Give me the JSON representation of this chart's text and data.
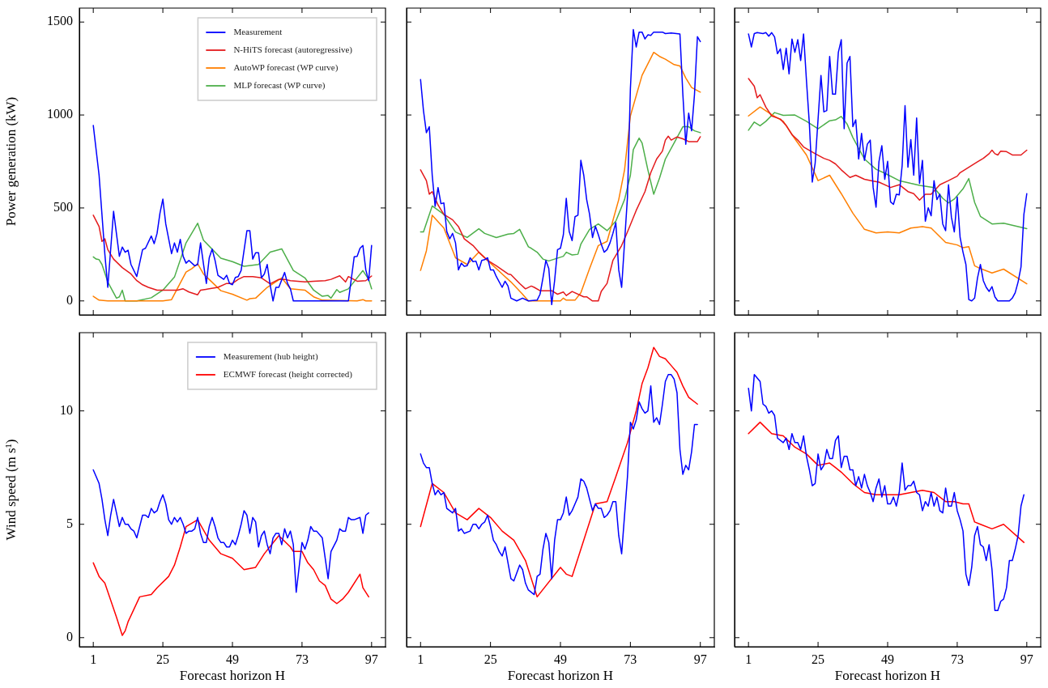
{
  "chart_data": [
    {
      "type": "line",
      "ylabel": "Power generation (kW)",
      "xlim": [
        -3.8,
        101.8
      ],
      "xticks": [
        1,
        25,
        49,
        73,
        97
      ],
      "ylim": [
        -75,
        1575
      ],
      "yticks": [
        0,
        500,
        1000,
        1500
      ],
      "tick_labels": "y",
      "legend": "top right",
      "series": [
        {
          "name": "Measurement",
          "color": "#0000ff",
          "x": [
            1,
            3,
            5,
            6,
            8,
            10,
            11,
            12,
            13,
            14,
            16,
            18,
            19,
            21,
            22,
            23,
            24,
            25,
            26,
            28,
            29,
            30,
            31,
            32,
            33,
            34,
            36,
            37,
            38,
            39,
            40,
            41,
            42,
            43,
            44,
            46,
            47,
            48,
            49,
            50,
            51,
            52,
            54,
            55,
            56,
            57,
            58,
            59,
            60,
            61,
            62,
            63,
            64,
            65,
            67,
            68,
            69,
            70,
            89,
            91,
            92,
            93,
            94,
            95,
            96,
            97
          ],
          "values": [
            944,
            676,
            250,
            73,
            482,
            240,
            290,
            262,
            273,
            196,
            131,
            276,
            283,
            349,
            308,
            363,
            472,
            548,
            414,
            254,
            312,
            262,
            331,
            240,
            203,
            218,
            189,
            196,
            312,
            200,
            94,
            232,
            279,
            218,
            138,
            116,
            138,
            94,
            87,
            126,
            131,
            164,
            378,
            378,
            225,
            259,
            259,
            124,
            145,
            196,
            87,
            0,
            73,
            73,
            153,
            94,
            65,
            0,
            0,
            237,
            240,
            283,
            298,
            167,
            109,
            298
          ]
        },
        {
          "name": "N-HiTS forecast (autoregressive)",
          "color": "#e41a1c",
          "x": [
            1,
            3,
            4,
            5,
            6,
            8,
            11,
            14,
            16,
            18,
            20,
            23,
            27,
            30,
            32,
            34,
            37,
            38,
            41,
            44,
            47,
            49,
            51,
            53,
            56,
            59,
            62,
            65,
            67,
            69,
            74,
            77,
            81,
            83,
            86,
            88,
            89,
            92,
            95,
            97
          ],
          "values": [
            461,
            400,
            320,
            334,
            276,
            225,
            179,
            145,
            109,
            87,
            73,
            58,
            58,
            58,
            65,
            48,
            33,
            58,
            65,
            73,
            94,
            94,
            116,
            131,
            131,
            124,
            92,
            116,
            116,
            109,
            102,
            106,
            109,
            116,
            135,
            102,
            131,
            106,
            109,
            134
          ]
        },
        {
          "name": "AutoWP forecast (WP curve)",
          "color": "#ff7f00",
          "x": [
            1,
            3,
            6,
            25,
            28,
            33,
            35,
            37,
            39,
            45,
            49,
            54,
            55,
            57,
            61,
            66,
            69,
            74,
            77,
            80,
            92,
            94,
            95,
            97
          ],
          "values": [
            25,
            4,
            0,
            0,
            7,
            155,
            174,
            200,
            145,
            55,
            36,
            4,
            12,
            15,
            73,
            124,
            65,
            58,
            22,
            4,
            0,
            7,
            0,
            0
          ]
        },
        {
          "name": "MLP forecast (WP curve)",
          "color": "#4daf4a",
          "x": [
            1,
            2,
            3,
            4,
            6,
            9,
            10,
            11,
            12,
            16,
            21,
            25,
            29,
            33,
            37,
            39,
            45,
            49,
            53,
            58,
            62,
            66,
            70,
            74,
            77,
            80,
            82,
            83,
            85,
            86,
            89,
            94,
            96,
            97
          ],
          "values": [
            237,
            225,
            222,
            196,
            102,
            15,
            22,
            58,
            0,
            0,
            17,
            58,
            128,
            312,
            418,
            327,
            230,
            211,
            186,
            196,
            262,
            280,
            164,
            124,
            58,
            25,
            29,
            15,
            61,
            46,
            65,
            163,
            116,
            65
          ]
        }
      ]
    },
    {
      "type": "line",
      "xlim": [
        -3.8,
        101.8
      ],
      "xticks": [
        1,
        25,
        49,
        73,
        97
      ],
      "ylim": [
        -75,
        1575
      ],
      "yticks": [
        0,
        500,
        1000,
        1500
      ],
      "tick_labels": false,
      "series": [
        {
          "color": "#0000ff",
          "x": [
            1,
            2,
            3,
            4,
            5,
            6,
            7,
            8,
            9,
            10,
            11,
            12,
            13,
            14,
            15,
            16,
            17,
            18,
            19,
            20,
            21,
            22,
            23,
            24,
            25,
            26,
            27,
            29,
            30,
            31,
            32,
            34,
            36,
            38,
            41,
            42,
            43,
            44,
            45,
            46,
            47,
            48,
            49,
            50,
            51,
            52,
            53,
            54,
            55,
            56,
            57,
            58,
            59,
            60,
            61,
            62,
            63,
            64,
            65,
            66,
            67,
            68,
            69,
            70,
            72,
            73,
            74,
            75,
            76,
            77,
            78,
            79,
            80,
            81,
            84,
            85,
            87,
            90,
            91,
            92,
            93,
            94,
            95,
            96,
            97
          ],
          "values": [
            1191,
            1024,
            905,
            937,
            676,
            509,
            610,
            523,
            527,
            373,
            334,
            363,
            312,
            167,
            203,
            186,
            189,
            232,
            211,
            214,
            167,
            218,
            222,
            232,
            167,
            167,
            131,
            73,
            106,
            80,
            15,
            0,
            15,
            0,
            4,
            36,
            124,
            218,
            174,
            -20,
            109,
            276,
            283,
            356,
            552,
            373,
            324,
            453,
            461,
            756,
            676,
            545,
            465,
            341,
            402,
            356,
            305,
            262,
            276,
            312,
            363,
            421,
            167,
            73,
            559,
            1141,
            1460,
            1366,
            1446,
            1446,
            1409,
            1431,
            1428,
            1446,
            1446,
            1438,
            1441,
            1436,
            1112,
            843,
            1010,
            915,
            1112,
            1421,
            1395
          ]
        },
        {
          "color": "#e41a1c",
          "x": [
            1,
            3,
            4,
            5,
            7,
            9,
            12,
            14,
            16,
            19,
            21,
            24,
            27,
            29,
            31,
            32,
            35,
            37,
            39,
            40,
            42,
            46,
            48,
            50,
            51,
            53,
            57,
            58,
            60,
            62,
            63,
            65,
            67,
            70,
            72,
            75,
            78,
            80,
            82,
            84,
            85,
            86,
            87,
            89,
            91,
            93,
            95,
            96,
            97
          ],
          "values": [
            705,
            647,
            574,
            588,
            516,
            465,
            436,
            400,
            334,
            298,
            262,
            218,
            189,
            167,
            145,
            142,
            94,
            65,
            80,
            73,
            55,
            55,
            36,
            48,
            29,
            51,
            22,
            22,
            0,
            0,
            51,
            94,
            218,
            298,
            371,
            487,
            588,
            690,
            763,
            806,
            865,
            886,
            865,
            882,
            872,
            857,
            857,
            857,
            883
          ]
        },
        {
          "color": "#ff7f00",
          "x": [
            1,
            3,
            5,
            9,
            13,
            17,
            21,
            25,
            29,
            32,
            36,
            38,
            49,
            50,
            51,
            54,
            56,
            59,
            62,
            65,
            69,
            71,
            73,
            77,
            81,
            83,
            85,
            88,
            90,
            92,
            94,
            97
          ],
          "values": [
            164,
            269,
            461,
            392,
            232,
            196,
            262,
            203,
            145,
            102,
            36,
            0,
            0,
            15,
            4,
            4,
            44,
            174,
            298,
            320,
            545,
            705,
            995,
            1213,
            1337,
            1315,
            1300,
            1271,
            1264,
            1199,
            1148,
            1123
          ]
        },
        {
          "color": "#4daf4a",
          "x": [
            1,
            2,
            5,
            9,
            13,
            17,
            21,
            23,
            27,
            31,
            33,
            35,
            38,
            39,
            41,
            43,
            45,
            50,
            51,
            53,
            55,
            56,
            59,
            62,
            65,
            68,
            71,
            73,
            74,
            76,
            77,
            79,
            81,
            83,
            85,
            88,
            91,
            93,
            95,
            97
          ],
          "values": [
            371,
            371,
            511,
            465,
            371,
            341,
            388,
            363,
            341,
            359,
            363,
            385,
            291,
            283,
            262,
            225,
            215,
            240,
            262,
            247,
            251,
            305,
            385,
            414,
            378,
            429,
            545,
            676,
            814,
            876,
            850,
            705,
            574,
            661,
            763,
            850,
            937,
            937,
            915,
            905
          ]
        }
      ]
    },
    {
      "type": "line",
      "xlim": [
        -3.8,
        101.8
      ],
      "xticks": [
        1,
        25,
        49,
        73,
        97
      ],
      "ylim": [
        -75,
        1575
      ],
      "yticks": [
        0,
        500,
        1000,
        1500
      ],
      "tick_labels": false,
      "series": [
        {
          "color": "#0000ff",
          "x": [
            1,
            2,
            3,
            4,
            6,
            7,
            8,
            9,
            10,
            11,
            12,
            13,
            14,
            15,
            16,
            17,
            18,
            19,
            20,
            21,
            22,
            23,
            24,
            26,
            27,
            28,
            29,
            30,
            31,
            32,
            33,
            34,
            35,
            36,
            37,
            38,
            39,
            40,
            41,
            42,
            43,
            44,
            45,
            46,
            47,
            48,
            49,
            50,
            51,
            52,
            53,
            54,
            55,
            56,
            57,
            58,
            59,
            60,
            61,
            62,
            63,
            64,
            65,
            66,
            67,
            68,
            69,
            70,
            71,
            72,
            73,
            74,
            75,
            76,
            77,
            78,
            79,
            80,
            81,
            82,
            83,
            84,
            85,
            86,
            87,
            91,
            92,
            93,
            94,
            95,
            96,
            97
          ],
          "values": [
            1436,
            1366,
            1438,
            1443,
            1438,
            1443,
            1424,
            1443,
            1420,
            1330,
            1356,
            1245,
            1359,
            1221,
            1409,
            1337,
            1405,
            1293,
            1436,
            1184,
            952,
            639,
            741,
            1213,
            1017,
            1024,
            1315,
            1112,
            1112,
            1337,
            1405,
            926,
            1279,
            1315,
            937,
            974,
            763,
            901,
            756,
            843,
            865,
            610,
            504,
            748,
            835,
            654,
            751,
            533,
            519,
            574,
            570,
            727,
            1050,
            719,
            868,
            676,
            984,
            632,
            756,
            429,
            501,
            458,
            647,
            545,
            574,
            414,
            378,
            625,
            450,
            371,
            559,
            341,
            262,
            196,
            7,
            0,
            15,
            124,
            196,
            109,
            73,
            51,
            77,
            22,
            0,
            0,
            15,
            44,
            102,
            182,
            465,
            577
          ]
        },
        {
          "color": "#e41a1c",
          "x": [
            1,
            3,
            4,
            5,
            7,
            9,
            12,
            14,
            16,
            18,
            20,
            24,
            27,
            29,
            31,
            33,
            36,
            38,
            41,
            44,
            46,
            49,
            50,
            53,
            56,
            58,
            60,
            62,
            64,
            67,
            70,
            73,
            74,
            77,
            80,
            82,
            84,
            85,
            86,
            87,
            88,
            90,
            92,
            94,
            95,
            97
          ],
          "values": [
            1196,
            1155,
            1093,
            1109,
            1042,
            995,
            978,
            944,
            894,
            865,
            828,
            792,
            767,
            756,
            737,
            705,
            664,
            676,
            654,
            644,
            639,
            618,
            610,
            625,
            588,
            577,
            542,
            574,
            574,
            625,
            647,
            671,
            690,
            719,
            748,
            767,
            792,
            811,
            792,
            785,
            806,
            803,
            785,
            785,
            785,
            811
          ]
        },
        {
          "color": "#ff7f00",
          "x": [
            1,
            5,
            9,
            13,
            17,
            21,
            25,
            29,
            33,
            37,
            41,
            45,
            49,
            53,
            57,
            61,
            64,
            69,
            73,
            75,
            77,
            79,
            81,
            85,
            89,
            97
          ],
          "values": [
            995,
            1043,
            1002,
            966,
            872,
            785,
            647,
            676,
            577,
            472,
            385,
            366,
            371,
            366,
            392,
            400,
            392,
            315,
            301,
            286,
            292,
            189,
            174,
            150,
            171,
            92
          ]
        },
        {
          "color": "#4daf4a",
          "x": [
            1,
            3,
            5,
            7,
            10,
            13,
            17,
            21,
            25,
            29,
            31,
            33,
            35,
            37,
            41,
            45,
            48,
            53,
            57,
            60,
            65,
            68,
            70,
            72,
            75,
            77,
            79,
            81,
            85,
            89,
            97
          ],
          "values": [
            918,
            962,
            942,
            966,
            1013,
            998,
            1000,
            966,
            926,
            969,
            974,
            992,
            952,
            879,
            763,
            708,
            687,
            647,
            632,
            622,
            610,
            552,
            527,
            548,
            603,
            658,
            530,
            455,
            414,
            418,
            389
          ]
        }
      ]
    },
    {
      "type": "line",
      "xlabel": "Forecast horizon H",
      "ylabel": "Wind speed (m s¹)",
      "xlim": [
        -3.8,
        101.8
      ],
      "xticks": [
        1,
        25,
        49,
        73,
        97
      ],
      "ylim": [
        -0.4,
        13.45
      ],
      "yticks": [
        0,
        5,
        10
      ],
      "legend": "top right",
      "series": [
        {
          "name": "Measurement (hub height)",
          "color": "#0000ff",
          "x": [
            1,
            3,
            4,
            5,
            6,
            7,
            8,
            9,
            10,
            11,
            12,
            13,
            14,
            15,
            16,
            17,
            18,
            19,
            20,
            21,
            22,
            23,
            24,
            25,
            26,
            27,
            28,
            29,
            30,
            31,
            32,
            33,
            34,
            35,
            36,
            37,
            38,
            39,
            40,
            41,
            42,
            43,
            44,
            45,
            46,
            47,
            48,
            49,
            50,
            51,
            52,
            53,
            54,
            55,
            56,
            57,
            58,
            59,
            60,
            61,
            62,
            63,
            64,
            65,
            66,
            67,
            68,
            69,
            70,
            71,
            73,
            74,
            75,
            76,
            77,
            78,
            80,
            82,
            83,
            85,
            86,
            87,
            88,
            89,
            90,
            91,
            93,
            94,
            95,
            96
          ],
          "values": [
            7.4,
            6.8,
            6.1,
            5.2,
            4.5,
            5.4,
            6.1,
            5.5,
            4.9,
            5.3,
            5.0,
            5.0,
            4.8,
            4.7,
            4.4,
            4.9,
            5.4,
            5.4,
            5.3,
            5.7,
            5.5,
            5.6,
            6.0,
            6.3,
            5.9,
            5.2,
            5.0,
            5.3,
            5.1,
            5.3,
            5.0,
            4.6,
            4.7,
            4.7,
            4.8,
            5.3,
            4.6,
            4.2,
            4.2,
            4.9,
            5.3,
            4.9,
            4.4,
            4.2,
            4.2,
            4.0,
            4.0,
            4.3,
            4.1,
            4.5,
            5.0,
            5.6,
            5.4,
            4.6,
            5.3,
            5.1,
            4.0,
            4.5,
            4.7,
            4.1,
            3.7,
            4.4,
            4.6,
            4.6,
            4.1,
            4.8,
            4.4,
            4.7,
            4.1,
            2.0,
            4.2,
            3.9,
            4.3,
            4.9,
            4.7,
            4.7,
            4.4,
            2.6,
            3.8,
            4.3,
            4.8,
            4.7,
            4.7,
            5.3,
            5.2,
            5.2,
            5.3,
            4.6,
            5.4,
            5.5
          ]
        },
        {
          "name": "ECMWF forecast (height corrected)",
          "color": "#ff0000",
          "x": [
            1,
            3,
            5,
            9,
            11,
            12,
            13,
            17,
            21,
            23,
            27,
            29,
            31,
            33,
            37,
            41,
            45,
            49,
            53,
            57,
            60,
            65,
            69,
            70,
            73,
            75,
            77,
            79,
            81,
            83,
            85,
            87,
            89,
            93,
            94,
            96
          ],
          "values": [
            3.3,
            2.7,
            2.4,
            0.9,
            0.1,
            0.3,
            0.7,
            1.8,
            1.9,
            2.2,
            2.7,
            3.2,
            4.0,
            4.9,
            5.2,
            4.3,
            3.7,
            3.5,
            3.0,
            3.1,
            3.7,
            4.5,
            4.0,
            3.8,
            3.8,
            3.3,
            3.0,
            2.5,
            2.3,
            1.7,
            1.5,
            1.7,
            2.0,
            2.8,
            2.2,
            1.8
          ]
        }
      ]
    },
    {
      "type": "line",
      "xlabel": "Forecast horizon H",
      "xlim": [
        -3.8,
        101.8
      ],
      "xticks": [
        1,
        25,
        49,
        73,
        97
      ],
      "ylim": [
        -0.4,
        13.45
      ],
      "yticks": [
        0,
        5,
        10
      ],
      "tick_labels": "x",
      "series": [
        {
          "color": "#0000ff",
          "x": [
            1,
            2,
            3,
            4,
            5,
            6,
            7,
            8,
            9,
            10,
            11,
            12,
            13,
            14,
            15,
            16,
            18,
            19,
            20,
            21,
            22,
            23,
            24,
            25,
            26,
            27,
            28,
            29,
            30,
            31,
            32,
            33,
            35,
            36,
            37,
            38,
            40,
            41,
            42,
            43,
            44,
            45,
            46,
            47,
            48,
            49,
            50,
            51,
            52,
            53,
            54,
            55,
            56,
            57,
            58,
            59,
            60,
            61,
            62,
            63,
            64,
            65,
            66,
            67,
            68,
            69,
            70,
            72,
            73,
            74,
            75,
            76,
            77,
            78,
            79,
            80,
            81,
            82,
            83,
            84,
            85,
            86,
            87,
            88,
            89,
            90,
            91,
            92,
            93,
            94,
            95,
            96
          ],
          "values": [
            8.1,
            7.7,
            7.5,
            7.5,
            6.8,
            6.3,
            6.5,
            6.3,
            6.4,
            5.7,
            5.6,
            5.5,
            5.7,
            4.7,
            4.8,
            4.6,
            4.7,
            5.0,
            5.0,
            4.8,
            5.0,
            5.1,
            5.4,
            4.9,
            4.3,
            4.1,
            3.8,
            3.6,
            4.0,
            3.3,
            2.6,
            2.5,
            3.2,
            3.0,
            2.4,
            2.1,
            1.9,
            2.7,
            2.8,
            3.9,
            4.6,
            4.2,
            2.6,
            4.3,
            5.2,
            5.2,
            5.5,
            6.2,
            5.4,
            5.6,
            5.9,
            6.2,
            7.0,
            6.9,
            6.6,
            6.1,
            5.6,
            5.9,
            5.7,
            5.7,
            5.3,
            5.4,
            5.6,
            6.0,
            6.0,
            4.5,
            3.7,
            7.1,
            9.5,
            9.2,
            9.6,
            10.4,
            10.1,
            9.9,
            10.0,
            11.1,
            9.5,
            9.7,
            9.4,
            10.3,
            11.3,
            11.6,
            11.6,
            11.4,
            10.8,
            8.3,
            7.2,
            7.6,
            7.4,
            8.2,
            9.4,
            9.4
          ]
        },
        {
          "color": "#ff0000",
          "x": [
            1,
            5,
            9,
            13,
            17,
            21,
            25,
            29,
            33,
            37,
            41,
            49,
            51,
            53,
            61,
            65,
            68,
            72,
            75,
            77,
            79,
            81,
            83,
            85,
            87,
            89,
            91,
            93,
            96
          ],
          "values": [
            4.9,
            6.8,
            6.4,
            5.5,
            5.2,
            5.7,
            5.3,
            4.7,
            4.3,
            3.4,
            1.8,
            3.1,
            2.8,
            2.7,
            5.9,
            6.0,
            7.1,
            8.6,
            10.0,
            11.2,
            11.9,
            12.8,
            12.4,
            12.3,
            12.0,
            11.7,
            11.1,
            10.6,
            10.3
          ]
        }
      ]
    },
    {
      "type": "line",
      "xlabel": "Forecast horizon H",
      "xlim": [
        -3.8,
        101.8
      ],
      "xticks": [
        1,
        25,
        49,
        73,
        97
      ],
      "ylim": [
        -0.4,
        13.45
      ],
      "yticks": [
        0,
        5,
        10
      ],
      "tick_labels": "x",
      "series": [
        {
          "color": "#0000ff",
          "x": [
            1,
            2,
            3,
            5,
            6,
            7,
            8,
            9,
            10,
            11,
            13,
            14,
            15,
            16,
            17,
            18,
            19,
            20,
            21,
            22,
            23,
            24,
            25,
            26,
            27,
            28,
            29,
            30,
            31,
            32,
            33,
            34,
            35,
            36,
            37,
            38,
            39,
            40,
            41,
            42,
            43,
            44,
            45,
            46,
            47,
            48,
            49,
            50,
            51,
            52,
            53,
            54,
            55,
            56,
            57,
            58,
            59,
            60,
            61,
            62,
            63,
            64,
            65,
            66,
            67,
            68,
            69,
            70,
            71,
            72,
            73,
            74,
            75,
            76,
            77,
            78,
            79,
            80,
            81,
            82,
            83,
            84,
            85,
            86,
            87,
            88,
            89,
            90,
            91,
            92,
            93,
            94,
            95,
            96
          ],
          "values": [
            11.0,
            10.0,
            11.6,
            11.3,
            10.3,
            10.2,
            9.9,
            10.0,
            9.8,
            8.8,
            8.6,
            8.8,
            8.3,
            9.0,
            8.6,
            8.6,
            8.3,
            8.9,
            8.0,
            7.4,
            6.7,
            6.8,
            8.1,
            7.4,
            7.6,
            8.3,
            7.9,
            7.9,
            8.7,
            8.9,
            7.5,
            8.0,
            8.0,
            7.4,
            7.4,
            6.7,
            7.1,
            6.6,
            7.2,
            6.7,
            6.4,
            6.0,
            6.6,
            7.0,
            6.2,
            6.7,
            5.9,
            5.9,
            6.2,
            5.8,
            6.4,
            7.7,
            6.5,
            6.7,
            6.7,
            6.9,
            6.4,
            6.3,
            5.6,
            6.0,
            5.8,
            6.4,
            5.8,
            6.2,
            5.6,
            5.5,
            6.6,
            5.8,
            5.8,
            6.4,
            5.6,
            5.2,
            4.7,
            2.8,
            2.3,
            3.1,
            4.5,
            4.9,
            4.1,
            4.0,
            3.4,
            4.1,
            3.0,
            1.2,
            1.2,
            1.6,
            1.7,
            2.2,
            3.4,
            3.4,
            3.9,
            4.5,
            5.8,
            6.3
          ]
        },
        {
          "color": "#ff0000",
          "x": [
            1,
            5,
            9,
            13,
            17,
            21,
            25,
            29,
            31,
            33,
            37,
            41,
            45,
            49,
            53,
            57,
            61,
            65,
            69,
            72,
            75,
            77,
            79,
            81,
            85,
            89,
            96
          ],
          "values": [
            9.0,
            9.5,
            9.0,
            8.9,
            8.4,
            8.1,
            7.6,
            7.7,
            7.5,
            7.3,
            6.8,
            6.4,
            6.3,
            6.3,
            6.3,
            6.4,
            6.5,
            6.4,
            6.0,
            6.0,
            5.9,
            5.9,
            5.1,
            5.0,
            4.8,
            5.0,
            4.2
          ]
        }
      ]
    }
  ]
}
